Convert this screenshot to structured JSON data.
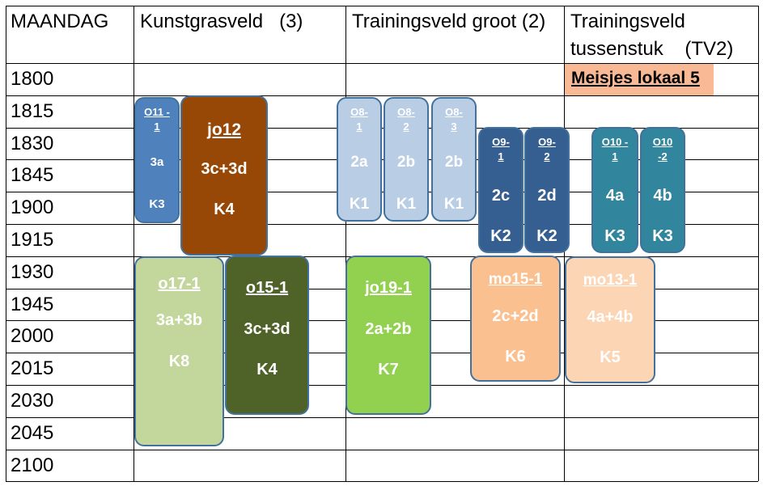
{
  "header": {
    "day": "MAANDAG",
    "columns": [
      "Kunstgrasveld   (3)",
      "Trainingsveld groot (2)",
      "Trainingsveld tussenstuk    (TV2)"
    ]
  },
  "times": [
    "1800",
    "1815",
    "1830",
    "1845",
    "1900",
    "1915",
    "1930",
    "1945",
    "2000",
    "2015",
    "2030",
    "2045",
    "2100"
  ],
  "banner": {
    "text": "Meisjes lokaal 5",
    "color": "#f8b994"
  },
  "blocks": [
    {
      "id": "o11-1",
      "name": "O11 -1",
      "teams": "3a",
      "field": "K3",
      "bg": "#4f81bd",
      "border": "#41719c",
      "fg": "#ffffff"
    },
    {
      "id": "jo12",
      "name": "jo12",
      "teams": "3c+3d",
      "field": "K4",
      "bg": "#974806",
      "border": "#41719c",
      "fg": "#ffffff"
    },
    {
      "id": "o8-1",
      "name": "O8- 1",
      "teams": "2a",
      "field": "K1",
      "bg": "#b9cde5",
      "border": "#41719c",
      "fg": "#ffffff"
    },
    {
      "id": "o8-2",
      "name": "O8- 2",
      "teams": "2b",
      "field": "K1",
      "bg": "#b9cde5",
      "border": "#41719c",
      "fg": "#ffffff"
    },
    {
      "id": "o8-3",
      "name": "O8- 3",
      "teams": "2b",
      "field": "K1",
      "bg": "#b9cde5",
      "border": "#41719c",
      "fg": "#ffffff"
    },
    {
      "id": "o9-1",
      "name": "O9- 1",
      "teams": "2c",
      "field": "K2",
      "bg": "#365f91",
      "border": "#41719c",
      "fg": "#ffffff"
    },
    {
      "id": "o9-2",
      "name": "O9- 2",
      "teams": "2d",
      "field": "K2",
      "bg": "#365f91",
      "border": "#41719c",
      "fg": "#ffffff"
    },
    {
      "id": "o10-1",
      "name": "O10 -1",
      "teams": "4a",
      "field": "K3",
      "bg": "#31859c",
      "border": "#41719c",
      "fg": "#ffffff"
    },
    {
      "id": "o10-2",
      "name": "O10 -2",
      "teams": "4b",
      "field": "K3",
      "bg": "#31859c",
      "border": "#41719c",
      "fg": "#ffffff"
    },
    {
      "id": "o17-1",
      "name": "o17-1",
      "teams": "3a+3b",
      "field": "K8",
      "bg": "#c3d69b",
      "border": "#41719c",
      "fg": "#ffffff"
    },
    {
      "id": "o15-1",
      "name": "o15-1",
      "teams": "3c+3d",
      "field": "K4",
      "bg": "#4f6228",
      "border": "#41719c",
      "fg": "#ffffff"
    },
    {
      "id": "jo19-1",
      "name": "jo19-1",
      "teams": "2a+2b",
      "field": "K7",
      "bg": "#92d050",
      "border": "#41719c",
      "fg": "#ffffff"
    },
    {
      "id": "mo15-1",
      "name": "mo15-1",
      "teams": "2c+2d",
      "field": "K6",
      "bg": "#fac090",
      "border": "#41719c",
      "fg": "#ffffff"
    },
    {
      "id": "mo13-1",
      "name": "mo13-1",
      "teams": "4a+4b",
      "field": "K5",
      "bg": "#fcd5b5",
      "border": "#41719c",
      "fg": "#ffffff"
    }
  ]
}
